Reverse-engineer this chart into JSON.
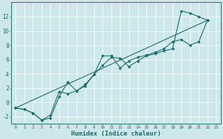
{
  "background_color": "#cce8ea",
  "grid_color": "#ffffff",
  "line_color": "#1a6b6b",
  "marker_color": "#1a6b6b",
  "xlabel": "Humidex (Indice chaleur)",
  "ylim": [
    -3,
    14
  ],
  "xlim": [
    -0.5,
    23.5
  ],
  "yticks": [
    -2,
    0,
    2,
    4,
    6,
    8,
    10,
    12
  ],
  "xticks": [
    0,
    1,
    2,
    3,
    4,
    5,
    6,
    7,
    8,
    9,
    10,
    11,
    12,
    13,
    14,
    15,
    16,
    17,
    18,
    19,
    20,
    21,
    22,
    23
  ],
  "line1_x": [
    0,
    1,
    2,
    3,
    4,
    5,
    6,
    7,
    8,
    9,
    10,
    11,
    12,
    13,
    14,
    15,
    16,
    17,
    18,
    19,
    20,
    21,
    22
  ],
  "line1_y": [
    -0.8,
    -1.0,
    -1.5,
    -2.5,
    -1.8,
    1.5,
    1.2,
    1.6,
    2.3,
    3.9,
    5.2,
    6.3,
    6.2,
    5.0,
    5.8,
    6.5,
    6.8,
    7.2,
    7.5,
    12.8,
    12.5,
    12.0,
    11.5
  ],
  "line2_x": [
    0,
    1,
    2,
    3,
    4,
    5,
    6,
    7,
    8,
    9,
    10,
    11,
    12,
    13,
    14,
    15,
    16,
    17,
    18,
    19,
    20,
    21,
    22
  ],
  "line2_y": [
    -0.8,
    -1.0,
    -1.5,
    -2.5,
    -2.2,
    0.8,
    2.8,
    1.6,
    2.5,
    3.9,
    6.5,
    6.5,
    4.8,
    5.8,
    6.3,
    6.6,
    7.0,
    7.5,
    8.5,
    8.8,
    8.0,
    8.5,
    11.5
  ],
  "line3_x": [
    0,
    22
  ],
  "line3_y": [
    -0.8,
    11.5
  ],
  "xlabel_fontsize": 6.5,
  "tick_fontsize_x": 4.5,
  "tick_fontsize_y": 5.5
}
